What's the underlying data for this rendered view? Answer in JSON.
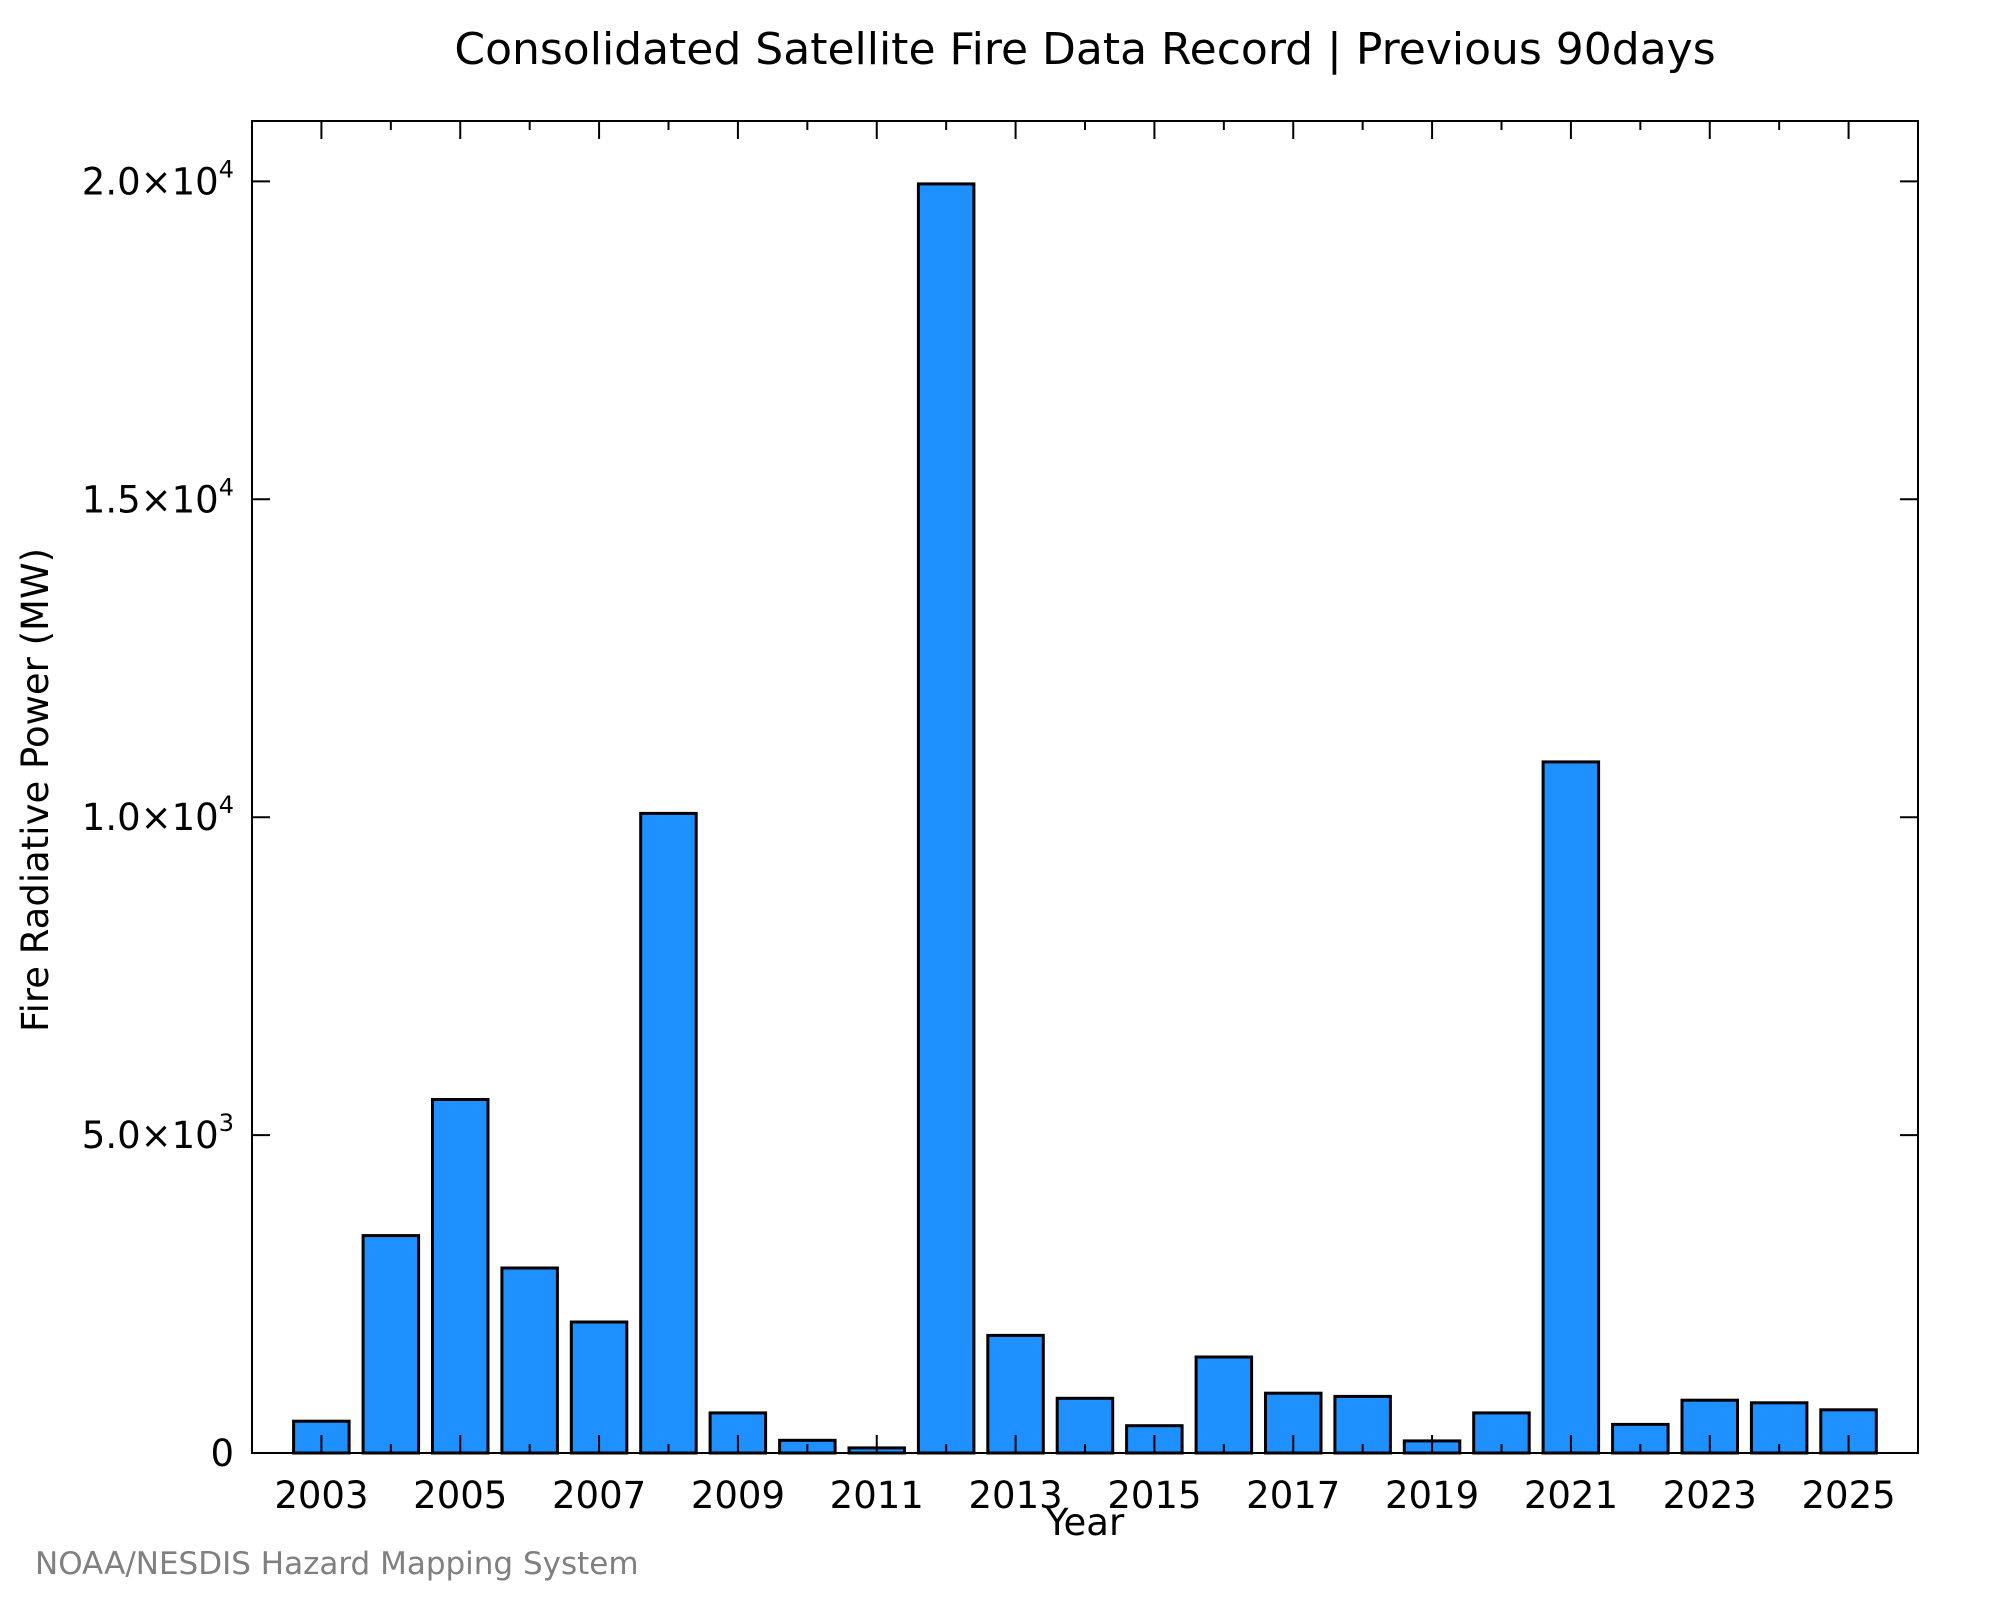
{
  "chart_data": {
    "type": "bar",
    "title": "Consolidated Satellite Fire Data Record | Previous 90days",
    "xlabel": "Year",
    "ylabel": "Fire Radiative Power (MW)",
    "credit": "NOAA/NESDIS Hazard Mapping System",
    "categories": [
      2003,
      2004,
      2005,
      2006,
      2007,
      2008,
      2009,
      2010,
      2011,
      2012,
      2013,
      2014,
      2015,
      2016,
      2017,
      2018,
      2019,
      2020,
      2021,
      2022,
      2023,
      2024,
      2025
    ],
    "values": [
      500,
      3420,
      5560,
      2910,
      2060,
      10060,
      630,
      200,
      80,
      19960,
      1850,
      860,
      430,
      1510,
      940,
      890,
      190,
      630,
      10870,
      450,
      830,
      790,
      680
    ],
    "xlim": [
      2002.0,
      2026.0
    ],
    "ylim": [
      0,
      20950
    ],
    "xticks": [
      2003,
      2005,
      2007,
      2009,
      2011,
      2013,
      2015,
      2017,
      2019,
      2021,
      2023,
      2025
    ],
    "yticks": [
      {
        "value": 0,
        "mantissa": "0",
        "exponent": ""
      },
      {
        "value": 5000,
        "mantissa": "5.0×10",
        "exponent": "3"
      },
      {
        "value": 10000,
        "mantissa": "1.0×10",
        "exponent": "4"
      },
      {
        "value": 15000,
        "mantissa": "1.5×10",
        "exponent": "4"
      },
      {
        "value": 20000,
        "mantissa": "2.0×10",
        "exponent": "4"
      }
    ],
    "bar_color": "#1e90ff",
    "edge_color": "#000000",
    "grid": false,
    "legend": "none"
  }
}
